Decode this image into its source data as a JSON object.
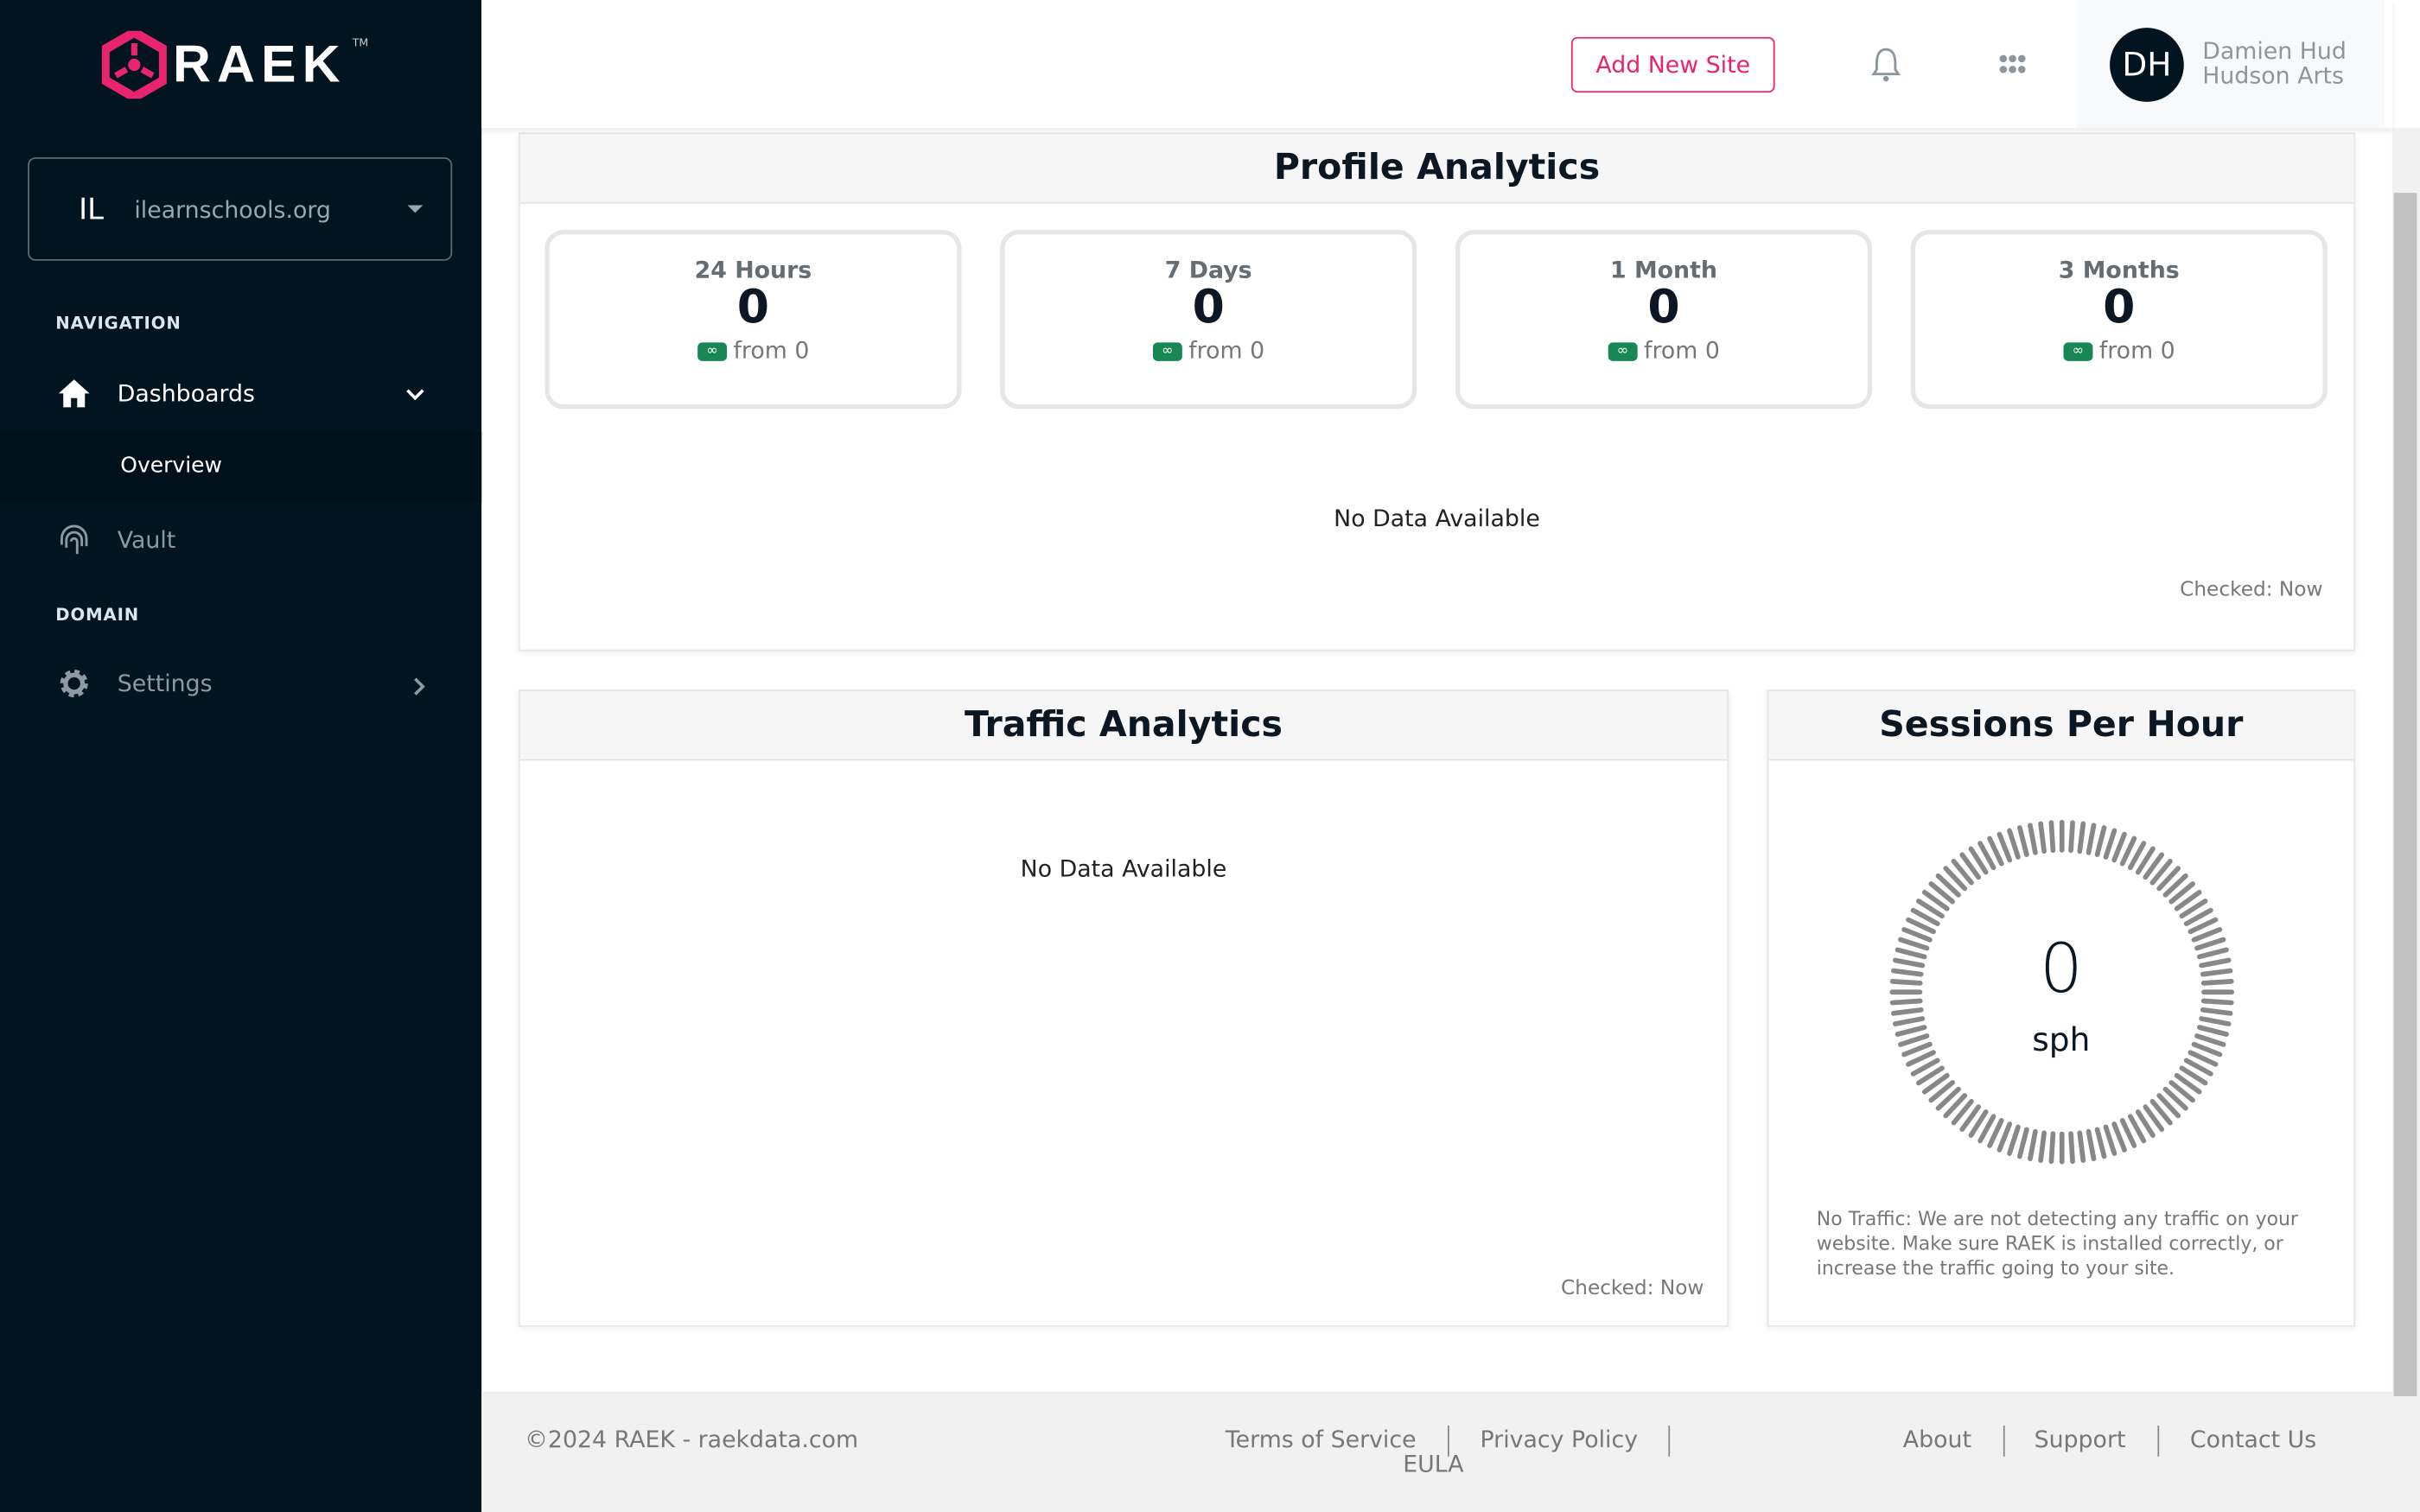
{
  "brand": {
    "name": "RAEK",
    "tm": "TM",
    "accent": "#e8246e",
    "sidebar_bg": "#021420"
  },
  "site_select": {
    "abbr": "IL",
    "value": "ilearnschools.org"
  },
  "sidebar": {
    "navigation_label": "NAVIGATION",
    "domain_label": "DOMAIN",
    "items": [
      {
        "label": "Dashboards",
        "icon": "home-icon"
      },
      {
        "label": "Overview"
      },
      {
        "label": "Vault",
        "icon": "fingerprint-icon"
      },
      {
        "label": "Settings",
        "icon": "gear-icon"
      }
    ]
  },
  "header": {
    "add_site": "Add New Site",
    "user_initials": "DH",
    "user_name": "Damien Hud",
    "user_org": "Hudson Arts"
  },
  "profile_analytics": {
    "title": "Profile Analytics",
    "stats": [
      {
        "label": "24 Hours",
        "value": "0",
        "badge": "∞",
        "from": "from 0"
      },
      {
        "label": "7 Days",
        "value": "0",
        "badge": "∞",
        "from": "from 0"
      },
      {
        "label": "1 Month",
        "value": "0",
        "badge": "∞",
        "from": "from 0"
      },
      {
        "label": "3 Months",
        "value": "0",
        "badge": "∞",
        "from": "from 0"
      }
    ],
    "no_data": "No Data Available",
    "checked": "Checked: Now"
  },
  "traffic_analytics": {
    "title": "Traffic Analytics",
    "no_data": "No Data Available",
    "checked": "Checked: Now"
  },
  "sessions": {
    "title": "Sessions Per Hour",
    "value": "0",
    "unit": "sph",
    "message": "No Traffic: We are not detecting any traffic on your website. Make sure RAEK is installed correctly, or increase the traffic going to your site."
  },
  "footer": {
    "copyright": "©2024 RAEK - raekdata.com",
    "links": [
      "Terms of Service",
      "Privacy Policy",
      "EULA",
      "About",
      "Support",
      "Contact Us"
    ]
  }
}
